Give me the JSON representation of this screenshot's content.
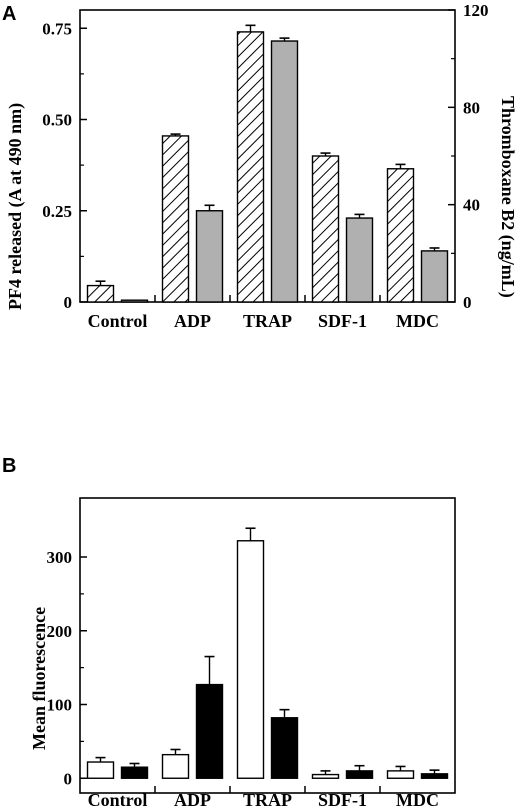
{
  "chart_data": [
    {
      "panel": "A",
      "type": "bar",
      "categories": [
        "Control",
        "ADP",
        "TRAP",
        "SDF-1",
        "MDC"
      ],
      "ylabel": "PF4 released (A at 490 nm)",
      "ylabel_right": "Thromboxane B2 (ng/mL)",
      "ylim": [
        0,
        0.8
      ],
      "ylim_right": [
        0,
        120
      ],
      "yticks": [
        "0",
        "0.25",
        "0.50",
        "0.75"
      ],
      "yticks_right": [
        "0",
        "40",
        "80",
        "120"
      ],
      "series": [
        {
          "fill": "hatched",
          "axis": "left",
          "values": [
            0.045,
            0.455,
            0.74,
            0.4,
            0.365
          ],
          "errors": [
            0.012,
            0.005,
            0.018,
            0.008,
            0.012
          ]
        },
        {
          "fill": "#b0b0b0",
          "axis": "left",
          "values": [
            0.005,
            0.25,
            0.715,
            0.23,
            0.14
          ],
          "errors": [
            0.0,
            0.015,
            0.008,
            0.01,
            0.008
          ]
        }
      ]
    },
    {
      "panel": "B",
      "type": "bar",
      "categories": [
        "Control",
        "ADP",
        "TRAP",
        "SDF-1",
        "MDC"
      ],
      "ylabel": "Mean fluorescence",
      "ylim": [
        -20,
        380
      ],
      "yticks": [
        "0",
        "100",
        "200",
        "300"
      ],
      "series": [
        {
          "fill": "#ffffff",
          "values": [
            22,
            32,
            322,
            5,
            10
          ],
          "errors": [
            6,
            7,
            17,
            5,
            6
          ]
        },
        {
          "fill": "#000000",
          "values": [
            15,
            127,
            82,
            10,
            6
          ],
          "errors": [
            5,
            38,
            11,
            7,
            5
          ]
        }
      ]
    }
  ]
}
